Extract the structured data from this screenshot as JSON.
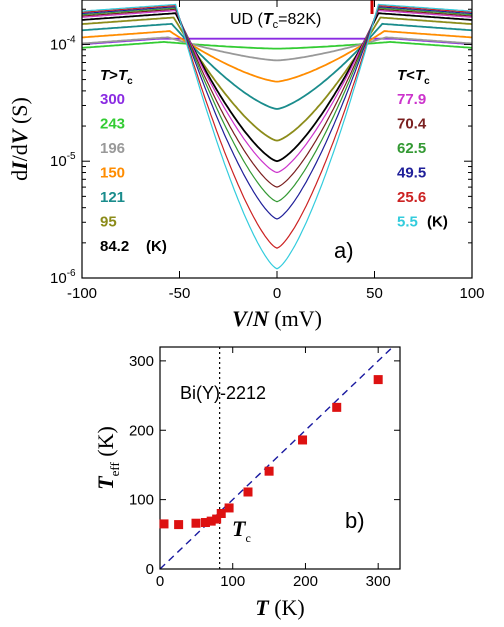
{
  "chart_data": [
    {
      "type": "line",
      "panel_label": "a)",
      "annotation": "UD (Tc=82K)",
      "annotation_parts": {
        "prefix": "UD (",
        "T": "T",
        "c_sub": "c",
        "suffix": "=82K)"
      },
      "xlabel": {
        "italic1": "V",
        "sep": "/",
        "italic2": "N",
        "unit": " (mV)"
      },
      "ylabel": {
        "d1": "d",
        "I": "I",
        "slash": "/d",
        "V": "V",
        "unit": " (S)"
      },
      "xlim": [
        -100,
        100
      ],
      "ylim": [
        1e-06,
        0.00024
      ],
      "yscale": "log",
      "x_ticks": [
        "-100",
        "-50",
        "0",
        "50",
        "100"
      ],
      "y_ticks": [
        {
          "value": 1e-06,
          "base": "10",
          "exp": "-6"
        },
        {
          "value": 1e-05,
          "base": "10",
          "exp": "-5"
        },
        {
          "value": 0.0001,
          "base": "10",
          "exp": "-4"
        }
      ],
      "legend_left_header": {
        "T1": "T",
        "gt": ">",
        "T2": "T",
        "sub": "c"
      },
      "legend_right_header": {
        "T1": "T",
        "lt": "<",
        "T2": "T",
        "sub": "c"
      },
      "legend_unit": "(K)",
      "series": [
        {
          "name": "300",
          "color": "#8a2be2",
          "group": "above",
          "g0": 0.000112,
          "gE": 0.000112,
          "w": 60
        },
        {
          "name": "243",
          "color": "#33cc33",
          "group": "above",
          "g0": 9.2e-05,
          "gE": 0.000105,
          "w": 58
        },
        {
          "name": "196",
          "color": "#999999",
          "group": "above",
          "g0": 7.3e-05,
          "gE": 0.000115,
          "w": 56
        },
        {
          "name": "150",
          "color": "#ff8c00",
          "group": "above",
          "g0": 4.8e-05,
          "gE": 0.00013,
          "w": 55
        },
        {
          "name": "121",
          "color": "#1a8c8c",
          "group": "above",
          "g0": 2.8e-05,
          "gE": 0.00015,
          "w": 54
        },
        {
          "name": "95",
          "color": "#8c8c1a",
          "group": "above",
          "g0": 1.5e-05,
          "gE": 0.00017,
          "w": 53
        },
        {
          "name": "84.2",
          "color": "#000000",
          "group": "above",
          "g0": 1e-05,
          "gE": 0.000185,
          "w": 52
        },
        {
          "name": "77.9",
          "color": "#cc33cc",
          "group": "below",
          "g0": 8e-06,
          "gE": 0.000195,
          "w": 52
        },
        {
          "name": "70.4",
          "color": "#7a1f1f",
          "group": "below",
          "g0": 6e-06,
          "gE": 0.0002,
          "w": 52
        },
        {
          "name": "62.5",
          "color": "#339933",
          "group": "below",
          "g0": 4.5e-06,
          "gE": 0.000205,
          "w": 52
        },
        {
          "name": "49.5",
          "color": "#1f1f99",
          "group": "below",
          "g0": 3.2e-06,
          "gE": 0.00021,
          "w": 52
        },
        {
          "name": "25.6",
          "color": "#cc2222",
          "group": "below",
          "g0": 1.8e-06,
          "gE": 0.000215,
          "w": 52
        },
        {
          "name": "5.5",
          "color": "#33ccdd",
          "group": "below",
          "g0": 1.2e-06,
          "gE": 0.00022,
          "w": 52
        }
      ]
    },
    {
      "type": "scatter",
      "panel_label": "b)",
      "annotation": "Bi(Y)-2212",
      "xlabel": {
        "T": "T",
        "unit": " (K)"
      },
      "ylabel": {
        "T": "T",
        "sub": "eff",
        "unit": " (K)"
      },
      "xlim": [
        0,
        330
      ],
      "ylim": [
        0,
        320
      ],
      "x_ticks": [
        "0",
        "100",
        "200",
        "300"
      ],
      "y_ticks": [
        "0",
        "100",
        "200",
        "300"
      ],
      "tc_line": 82,
      "tc_label": {
        "T": "T",
        "sub": "c"
      },
      "reference_line": {
        "from": [
          0,
          0
        ],
        "to": [
          330,
          330
        ]
      },
      "color": "#dd1111",
      "points": [
        {
          "x": 5.5,
          "y": 65
        },
        {
          "x": 25.6,
          "y": 64
        },
        {
          "x": 49.5,
          "y": 66
        },
        {
          "x": 62.5,
          "y": 67
        },
        {
          "x": 70.4,
          "y": 69
        },
        {
          "x": 77.9,
          "y": 72
        },
        {
          "x": 84.2,
          "y": 80
        },
        {
          "x": 95,
          "y": 88
        },
        {
          "x": 121,
          "y": 111
        },
        {
          "x": 150,
          "y": 141
        },
        {
          "x": 196,
          "y": 186
        },
        {
          "x": 243,
          "y": 233
        },
        {
          "x": 300,
          "y": 273
        }
      ]
    }
  ]
}
